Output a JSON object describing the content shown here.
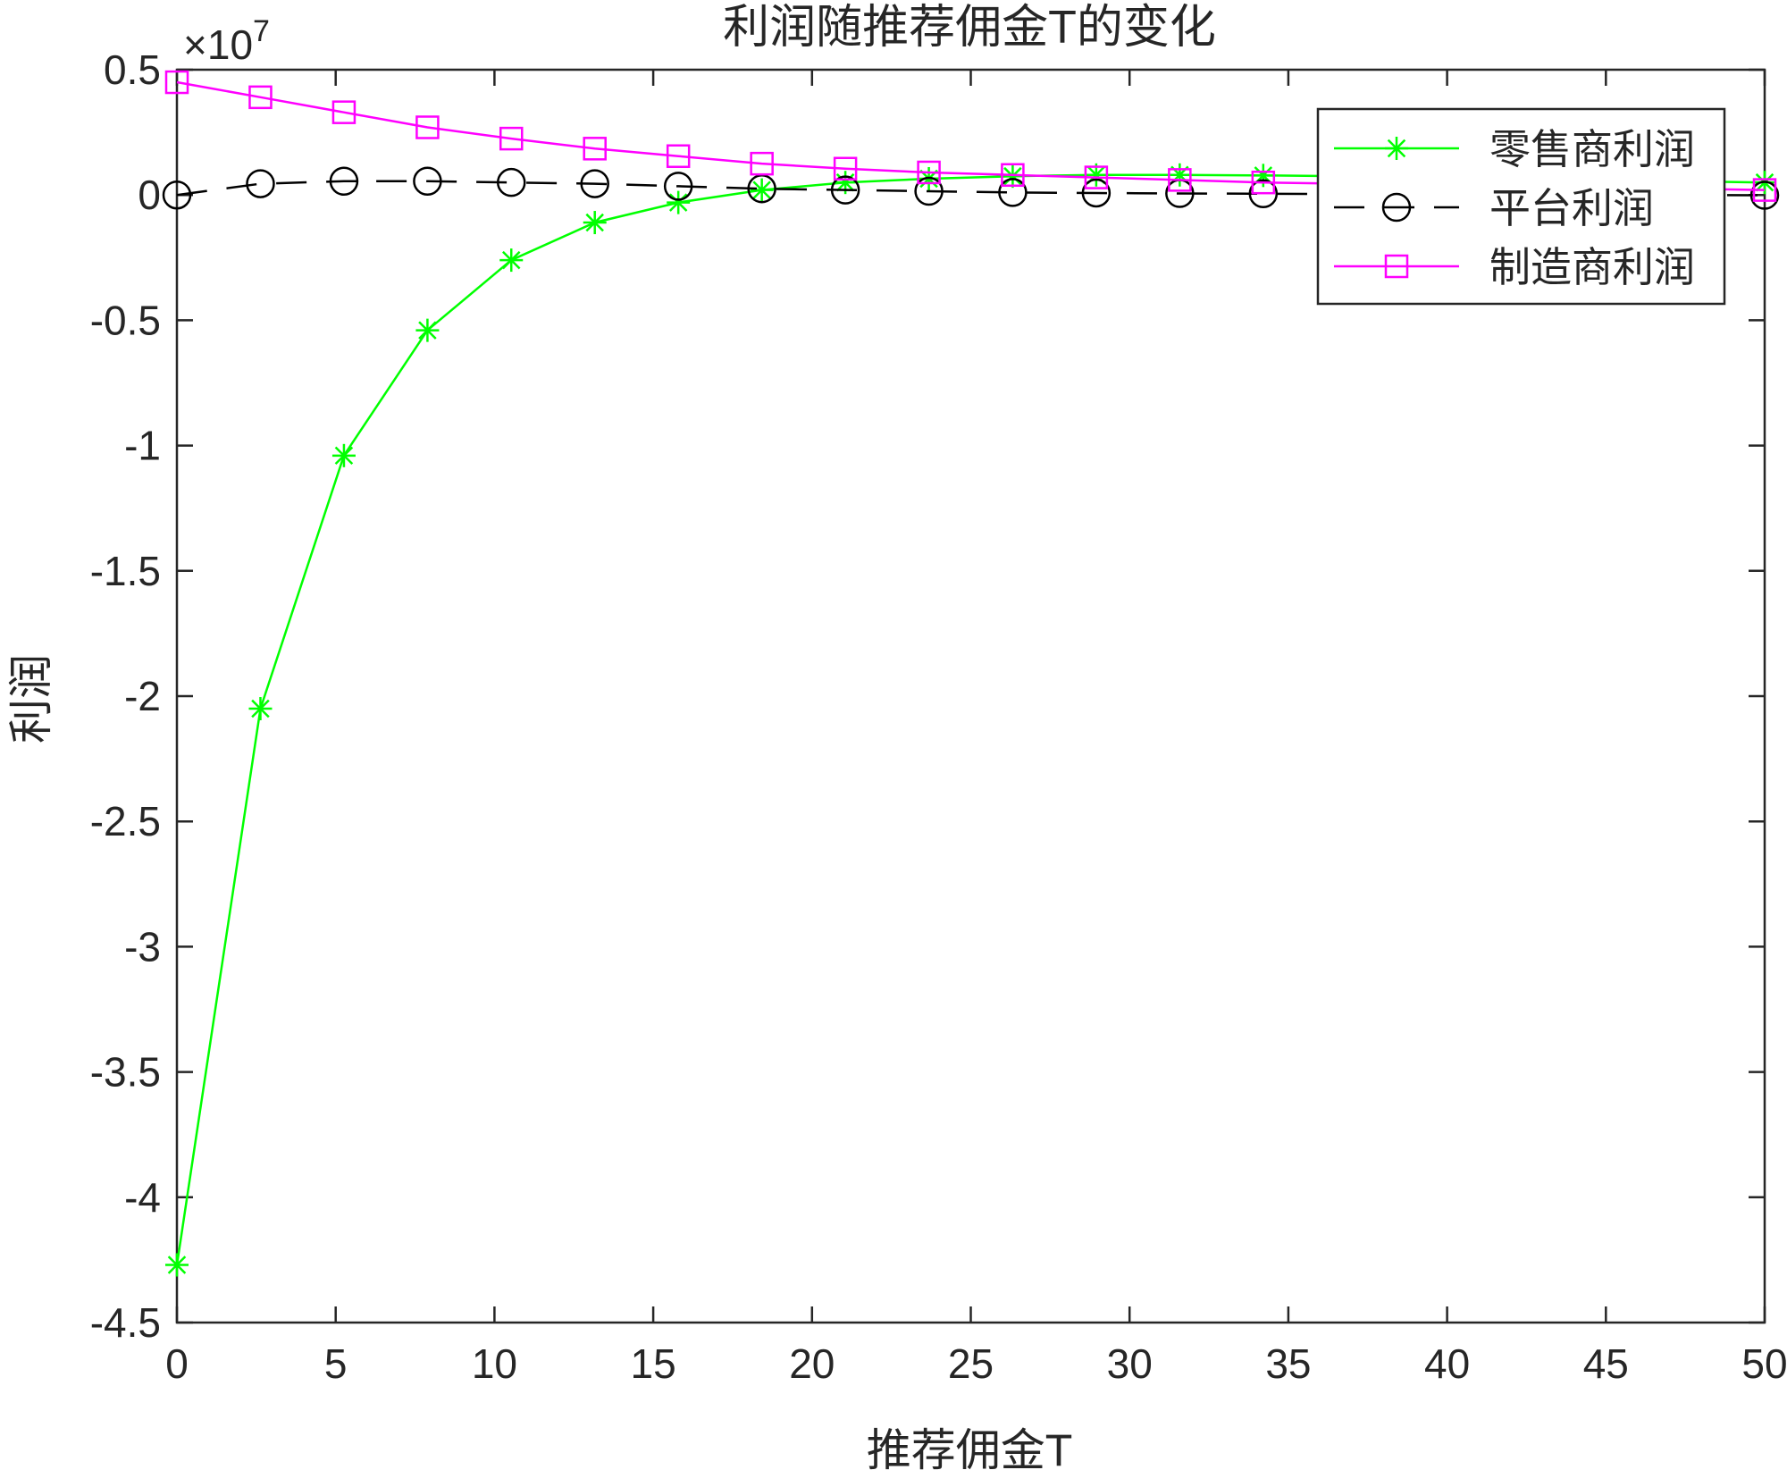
{
  "chart_data": {
    "type": "line",
    "title": "利润随推荐佣金T的变化",
    "xlabel": "推荐佣金T",
    "ylabel": "利润",
    "y_exponent_label": {
      "base": "×10",
      "exp": "7"
    },
    "xlim": [
      0,
      50
    ],
    "ylim": [
      -4.5,
      0.5
    ],
    "x_ticks": [
      0,
      5,
      10,
      15,
      20,
      25,
      30,
      35,
      40,
      45,
      50
    ],
    "y_ticks": [
      0.5,
      0,
      -0.5,
      -1,
      -1.5,
      -2,
      -2.5,
      -3,
      -3.5,
      -4,
      -4.5
    ],
    "x_tick_labels": [
      "0",
      "5",
      "10",
      "15",
      "20",
      "25",
      "30",
      "35",
      "40",
      "45",
      "50"
    ],
    "y_tick_labels": [
      "0.5",
      "0",
      "-0.5",
      "-1",
      "-1.5",
      "-2",
      "-2.5",
      "-3",
      "-3.5",
      "-4",
      "-4.5"
    ],
    "grid": false,
    "legend_position": "top-right",
    "x": [
      0,
      2.63,
      5.26,
      7.89,
      10.53,
      13.16,
      15.79,
      18.42,
      21.05,
      23.68,
      26.32,
      28.95,
      31.58,
      34.21,
      36.84,
      39.47,
      42.11,
      44.74,
      47.37,
      50
    ],
    "series": [
      {
        "name": "零售商利润",
        "color": "#00ff00",
        "marker": "asterisk",
        "line": "solid",
        "values": [
          -4.27,
          -2.05,
          -1.04,
          -0.54,
          -0.26,
          -0.11,
          -0.03,
          0.02,
          0.05,
          0.065,
          0.075,
          0.08,
          0.08,
          0.078,
          0.075,
          0.07,
          0.065,
          0.06,
          0.055,
          0.05
        ]
      },
      {
        "name": "平台利润",
        "color": "#000000",
        "marker": "circle",
        "line": "dashed",
        "values": [
          0.0,
          0.045,
          0.055,
          0.055,
          0.05,
          0.045,
          0.035,
          0.025,
          0.02,
          0.015,
          0.01,
          0.008,
          0.006,
          0.005,
          0.004,
          0.003,
          0.002,
          0.001,
          0.0,
          -0.001
        ]
      },
      {
        "name": "制造商利润",
        "color": "#ff00ff",
        "marker": "square",
        "line": "solid",
        "values": [
          0.45,
          0.39,
          0.33,
          0.27,
          0.225,
          0.185,
          0.155,
          0.125,
          0.105,
          0.09,
          0.08,
          0.07,
          0.06,
          0.05,
          0.045,
          0.04,
          0.035,
          0.03,
          0.025,
          0.02
        ]
      }
    ]
  }
}
